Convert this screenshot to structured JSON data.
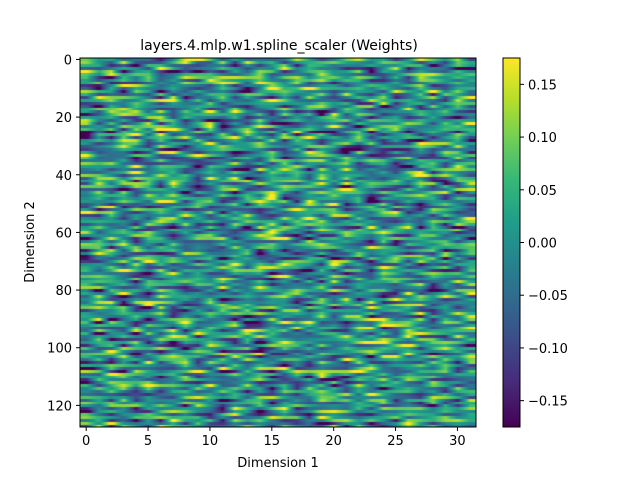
{
  "chart_data": {
    "type": "heatmap",
    "title": "layers.4.mlp.w1.spline_scaler (Weights)",
    "xlabel": "Dimension 1",
    "ylabel": "Dimension 2",
    "n_cols": 32,
    "n_rows": 128,
    "xlim": [
      -0.5,
      31.5
    ],
    "ylim": [
      127.5,
      -0.5
    ],
    "x_ticks": [
      0,
      5,
      10,
      15,
      20,
      25,
      30
    ],
    "y_ticks": [
      0,
      20,
      40,
      60,
      80,
      100,
      120
    ],
    "colorbar": {
      "min": -0.175,
      "max": 0.175,
      "ticks": [
        -0.15,
        -0.1,
        -0.05,
        0.0,
        0.05,
        0.1,
        0.15
      ],
      "tick_labels": [
        "−0.15",
        "−0.10",
        "−0.05",
        "0.00",
        "0.05",
        "0.10",
        "0.15"
      ],
      "colormap": "viridis"
    },
    "interpolation": "smooth along Dimension 1, banded along Dimension 2",
    "values_note": "Individual cell values are not legible; rendered as a random-like field spanning approximately -0.175 to 0.175."
  }
}
